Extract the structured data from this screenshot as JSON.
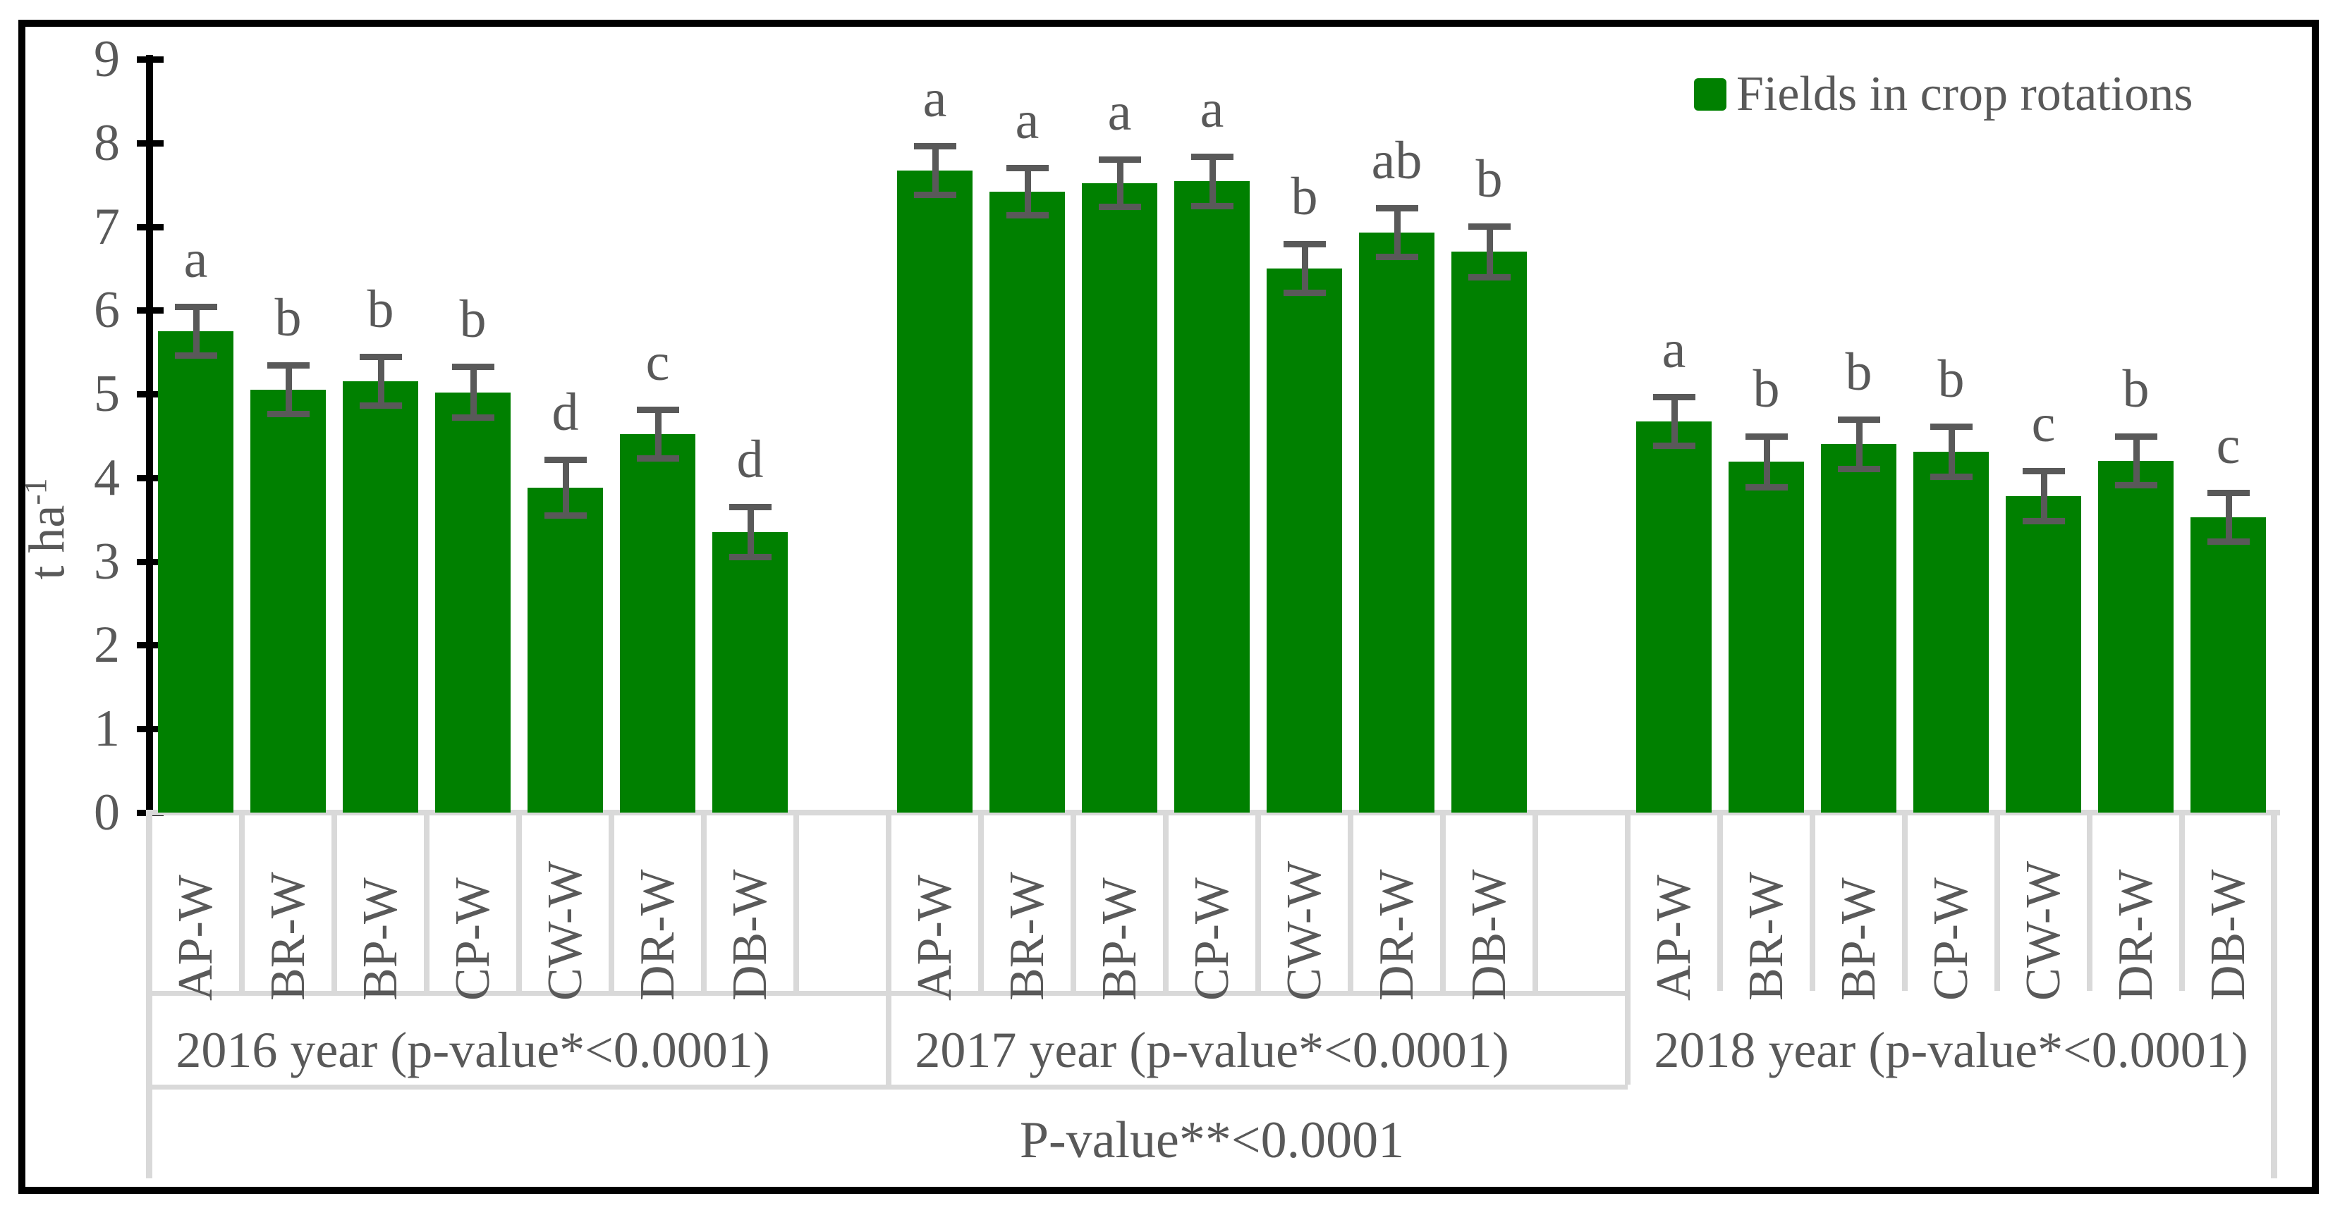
{
  "legend": {
    "label": "Fields in crop rotations",
    "swatch_color": "#008000"
  },
  "y_axis": {
    "title": "t ha",
    "title_superscript": "-1",
    "min": 0,
    "max": 9,
    "tick_labels": [
      "0",
      "1",
      "2",
      "3",
      "4",
      "5",
      "6",
      "7",
      "8",
      "9"
    ]
  },
  "colors": {
    "bar_green": "#008000",
    "text_gray": "#595959",
    "grid_light_gray": "#d9d9d9",
    "axis_black": "#000000"
  },
  "chart_data": {
    "type": "bar",
    "title": "",
    "xlabel": "",
    "ylabel": "t ha-1",
    "ylim": [
      0,
      9
    ],
    "grid": false,
    "legend_position": "top-right",
    "legend_entries": [
      "Fields in crop rotations"
    ],
    "categories": [
      "AP-W",
      "BR-W",
      "BP-W",
      "CP-W",
      "CW-W",
      "DR-W",
      "DB-W"
    ],
    "overall_label": "P-value**<0.0001",
    "groups": [
      {
        "label": "2016 year (p-value*<0.0001)",
        "categories": [
          "AP-W",
          "BR-W",
          "BP-W",
          "CP-W",
          "CW-W",
          "DR-W",
          "DB-W"
        ],
        "values": [
          5.75,
          5.05,
          5.15,
          5.02,
          3.88,
          4.52,
          3.35
        ],
        "errors": [
          0.33,
          0.33,
          0.33,
          0.34,
          0.37,
          0.33,
          0.34
        ],
        "sig_letters": [
          "a",
          "b",
          "b",
          "b",
          "d",
          "c",
          "d"
        ]
      },
      {
        "label": "2017 year (p-value*<0.0001)",
        "categories": [
          "AP-W",
          "BR-W",
          "BP-W",
          "CP-W",
          "CW-W",
          "DR-W",
          "DB-W"
        ],
        "values": [
          7.67,
          7.42,
          7.52,
          7.54,
          6.5,
          6.93,
          6.7
        ],
        "errors": [
          0.33,
          0.32,
          0.32,
          0.33,
          0.33,
          0.33,
          0.34
        ],
        "sig_letters": [
          "a",
          "a",
          "a",
          "a",
          "b",
          "ab",
          "b"
        ]
      },
      {
        "label": "2018 year (p-value*<0.0001)",
        "categories": [
          "AP-W",
          "BR-W",
          "BP-W",
          "CP-W",
          "CW-W",
          "DR-W",
          "DB-W"
        ],
        "values": [
          4.67,
          4.19,
          4.4,
          4.31,
          3.78,
          4.2,
          3.53
        ],
        "errors": [
          0.33,
          0.34,
          0.33,
          0.34,
          0.34,
          0.33,
          0.33
        ],
        "sig_letters": [
          "a",
          "b",
          "b",
          "b",
          "c",
          "b",
          "c"
        ]
      }
    ]
  }
}
